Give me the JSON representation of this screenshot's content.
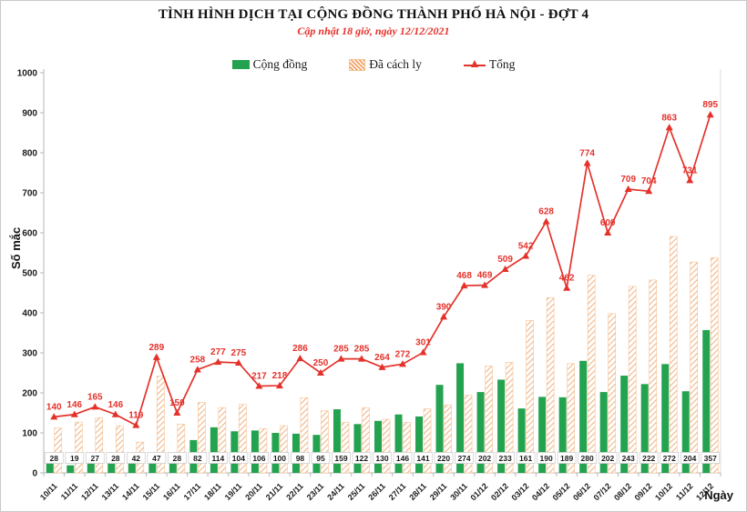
{
  "title": "TÌNH HÌNH DỊCH TẠI CỘNG ĐỒNG THÀNH PHỐ HÀ NỘI - ĐỢT 4",
  "subtitle": "Cập nhật 18 giờ, ngày 12/12/2021",
  "colors": {
    "green": "#23a24f",
    "orange": "#f0a164",
    "red": "#e4322b"
  },
  "legend": [
    {
      "label": "Cộng đồng",
      "swatch": "solid-green-bar"
    },
    {
      "label": "Đã cách ly",
      "swatch": "hatched-orange-bar"
    },
    {
      "label": "Tổng",
      "swatch": "red-line-triangle-marker"
    }
  ],
  "chart_data": {
    "type": "bar+line",
    "title": "TÌNH HÌNH DỊCH TẠI CỘNG ĐỒNG THÀNH PHỐ HÀ NỘI - ĐỢT 4",
    "subtitle": "Cập nhật 18 giờ, ngày 12/12/2021",
    "xlabel": "Ngày",
    "ylabel": "Số mắc",
    "ylim": [
      0,
      1000
    ],
    "yticks": [
      "0",
      "100",
      "200",
      "300",
      "400",
      "500",
      "600",
      "700",
      "800",
      "900",
      "1000"
    ],
    "grid": false,
    "legend_position": "top",
    "categories": [
      "10/11",
      "11/11",
      "12/11",
      "13/11",
      "14/11",
      "15/11",
      "16/11",
      "17/11",
      "18/11",
      "19/11",
      "20/11",
      "21/11",
      "22/11",
      "23/11",
      "24/11",
      "25/11",
      "26/11",
      "27/11",
      "28/11",
      "29/11",
      "30/11",
      "01/12",
      "02/12",
      "03/12",
      "04/12",
      "05/12",
      "06/12",
      "07/12",
      "08/12",
      "09/12",
      "10/12",
      "11/12",
      "12/12"
    ],
    "series": [
      {
        "name": "Cộng đồng",
        "type": "bar",
        "style": "solid",
        "color": "#23a24f",
        "values": [
          28,
          19,
          27,
          28,
          42,
          47,
          28,
          82,
          114,
          104,
          106,
          100,
          98,
          95,
          159,
          122,
          130,
          146,
          141,
          220,
          274,
          202,
          233,
          161,
          190,
          189,
          280,
          202,
          243,
          222,
          272,
          204,
          357
        ],
        "labels_visible": true,
        "label_position": "base-boxed"
      },
      {
        "name": "Đã cách ly",
        "type": "bar",
        "style": "hatched",
        "color": "#f0a164",
        "values": [
          112,
          127,
          138,
          118,
          77,
          242,
          122,
          176,
          163,
          171,
          111,
          118,
          188,
          155,
          126,
          163,
          134,
          126,
          160,
          170,
          194,
          267,
          276,
          381,
          438,
          273,
          494,
          398,
          466,
          482,
          591,
          527,
          538
        ],
        "labels_visible": false
      },
      {
        "name": "Tổng",
        "type": "line",
        "marker": "triangle-up",
        "color": "#e4322b",
        "values": [
          140,
          146,
          165,
          146,
          119,
          289,
          150,
          258,
          277,
          275,
          217,
          218,
          286,
          250,
          285,
          285,
          264,
          272,
          301,
          390,
          468,
          469,
          509,
          542,
          628,
          462,
          774,
          600,
          709,
          704,
          863,
          731,
          895
        ],
        "labels_visible": true,
        "label_position": "above"
      }
    ]
  }
}
